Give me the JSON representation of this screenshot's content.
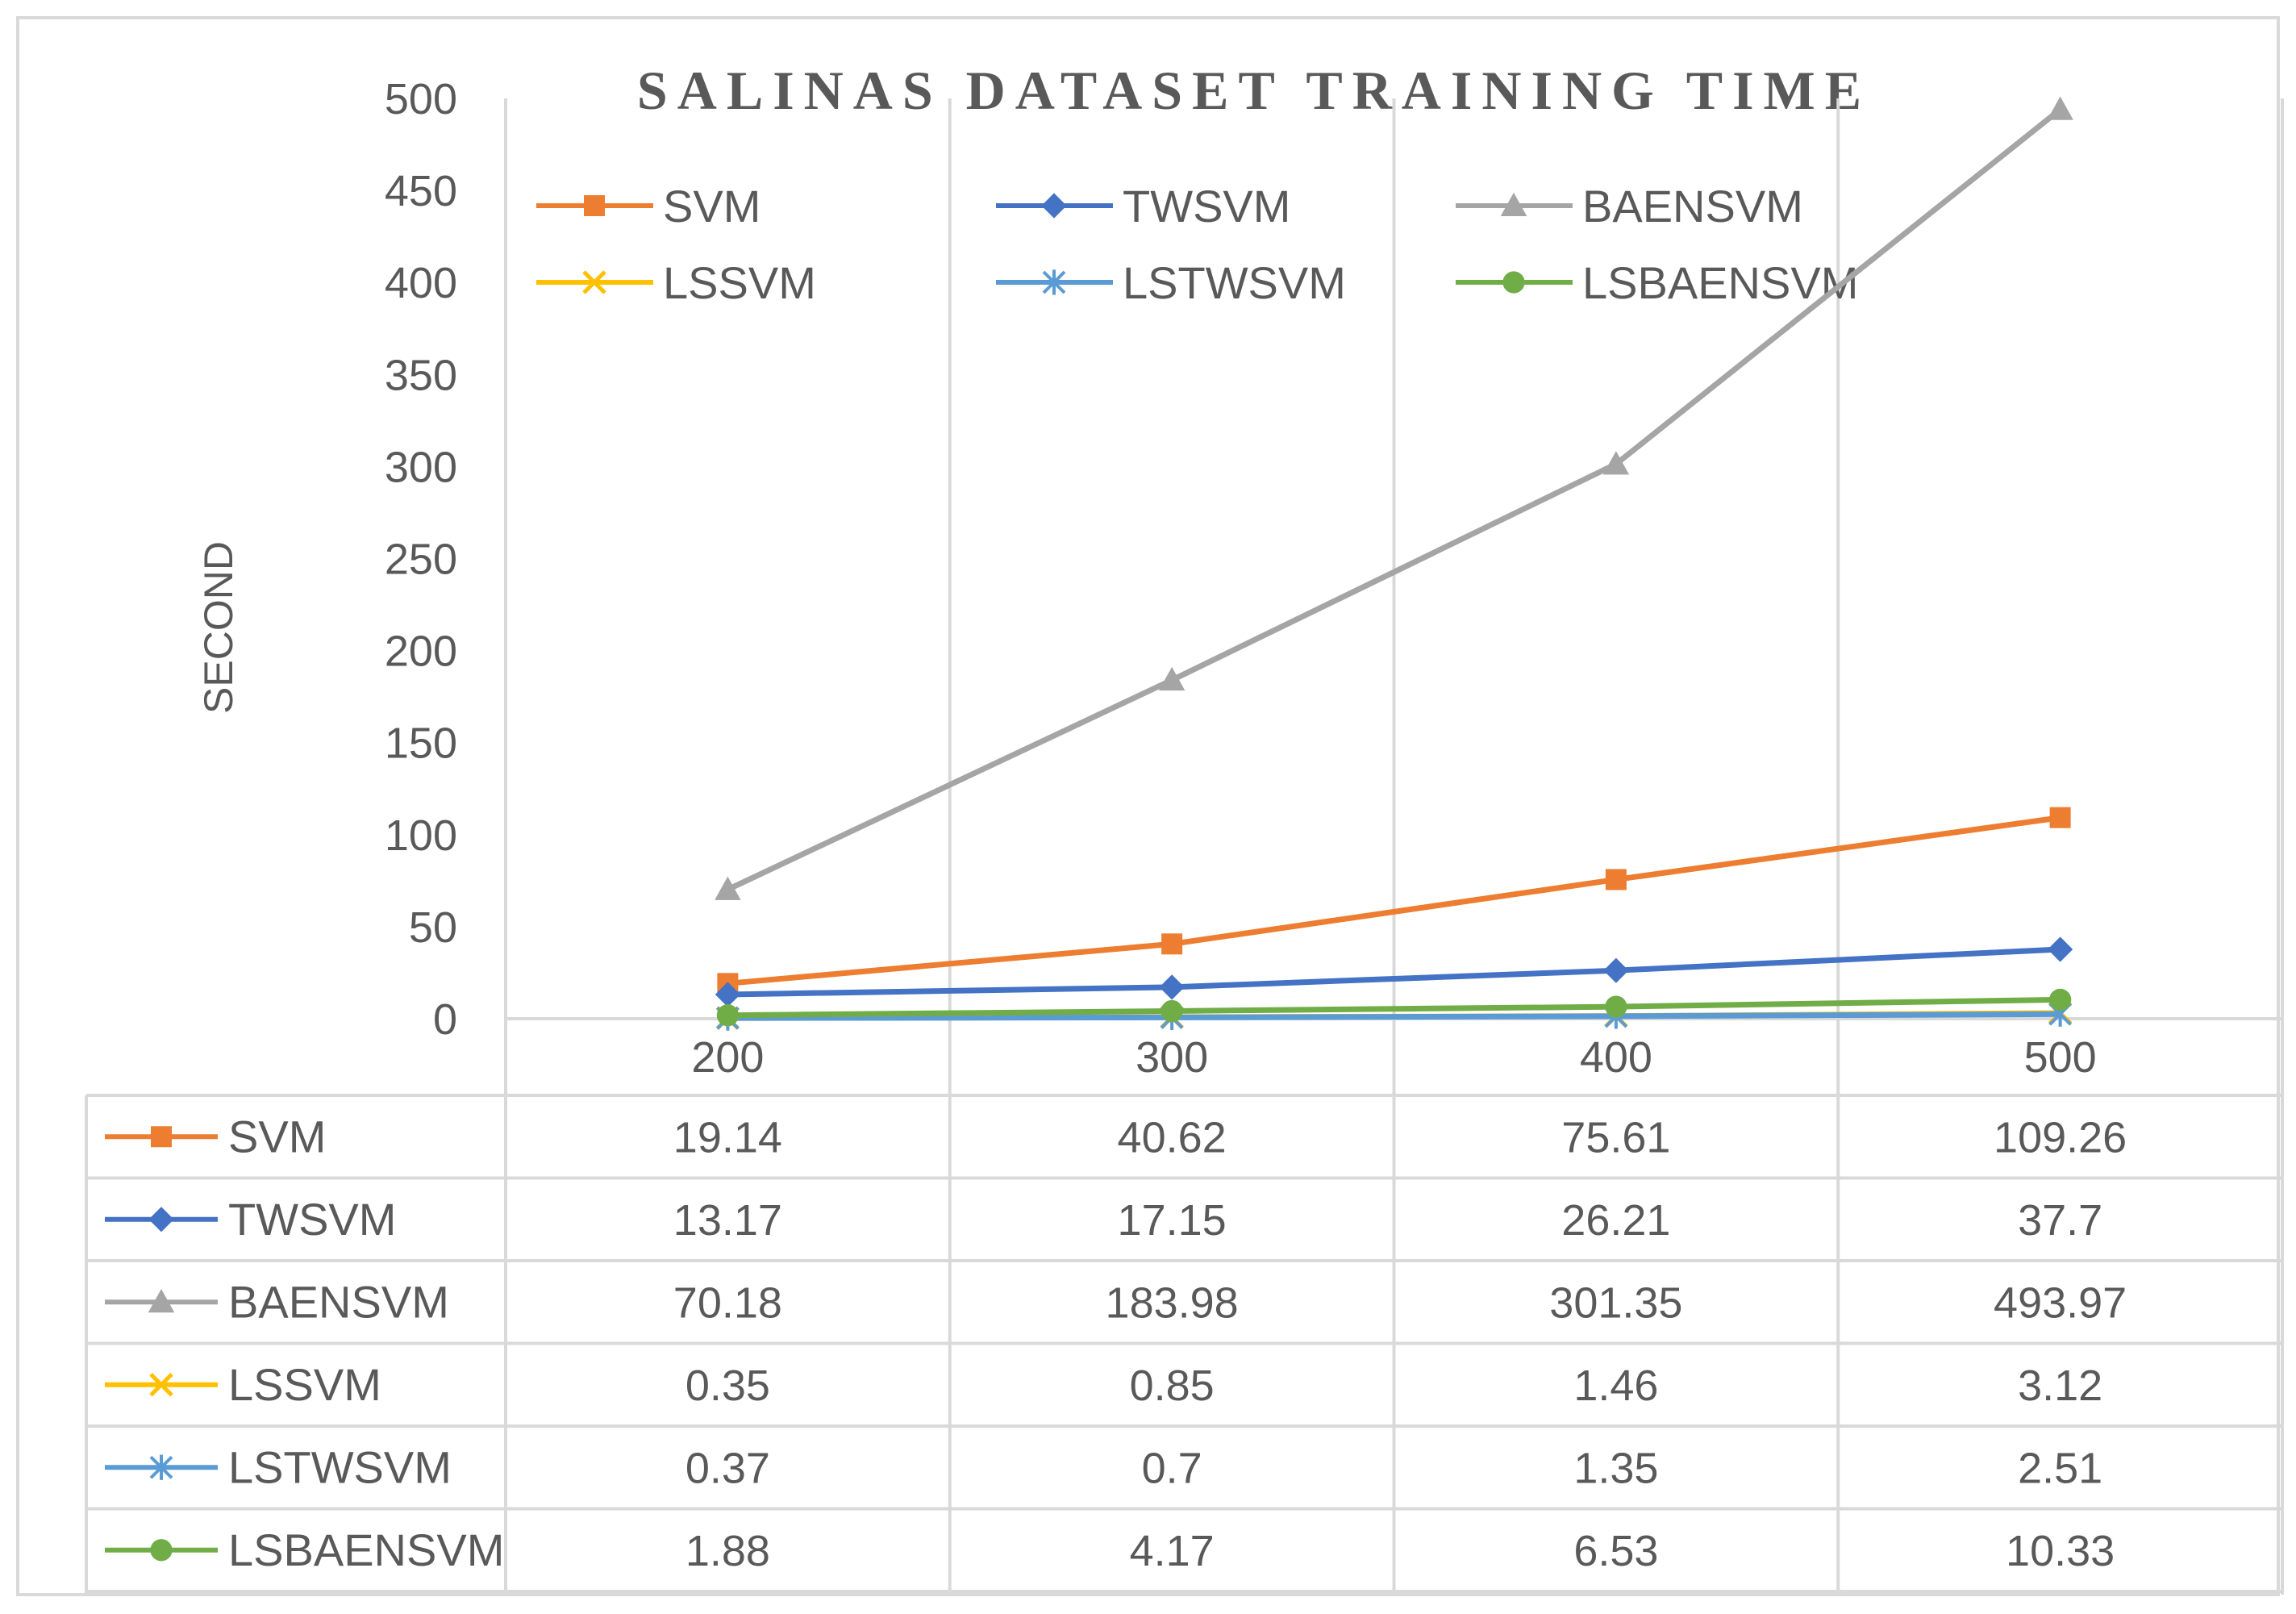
{
  "chart_data": {
    "type": "line",
    "title": "SALINAS DATASET TRAINING TIME",
    "xlabel": "",
    "ylabel": "SECOND",
    "ylim": [
      0,
      500
    ],
    "yticks": [
      0,
      50,
      100,
      150,
      200,
      250,
      300,
      350,
      400,
      450,
      500
    ],
    "categories": [
      "200",
      "300",
      "400",
      "500"
    ],
    "grid": "vertical",
    "legend_position": "top",
    "series": [
      {
        "name": "SVM",
        "color": "#ED7D31",
        "marker": "square",
        "values": [
          19.14,
          40.62,
          75.61,
          109.26
        ],
        "labels": [
          "19.14",
          "40.62",
          "75.61",
          "109.26"
        ]
      },
      {
        "name": "TWSVM",
        "color": "#4472C4",
        "marker": "diamond",
        "values": [
          13.17,
          17.15,
          26.21,
          37.7
        ],
        "labels": [
          "13.17",
          "17.15",
          "26.21",
          "37.7"
        ]
      },
      {
        "name": "BAENSVM",
        "color": "#A5A5A5",
        "marker": "triangle",
        "values": [
          70.18,
          183.98,
          301.35,
          493.97
        ],
        "labels": [
          "70.18",
          "183.98",
          "301.35",
          "493.97"
        ]
      },
      {
        "name": "LSSVM",
        "color": "#FFC000",
        "marker": "x",
        "values": [
          0.35,
          0.85,
          1.46,
          3.12
        ],
        "labels": [
          "0.35",
          "0.85",
          "1.46",
          "3.12"
        ]
      },
      {
        "name": "LSTWSVM",
        "color": "#5B9BD5",
        "marker": "star",
        "values": [
          0.37,
          0.7,
          1.35,
          2.51
        ],
        "labels": [
          "0.37",
          "0.7",
          "1.35",
          "2.51"
        ]
      },
      {
        "name": "LSBAENSVM",
        "color": "#70AD47",
        "marker": "circle",
        "values": [
          1.88,
          4.17,
          6.53,
          10.33
        ],
        "labels": [
          "1.88",
          "4.17",
          "6.53",
          "10.33"
        ]
      }
    ]
  }
}
